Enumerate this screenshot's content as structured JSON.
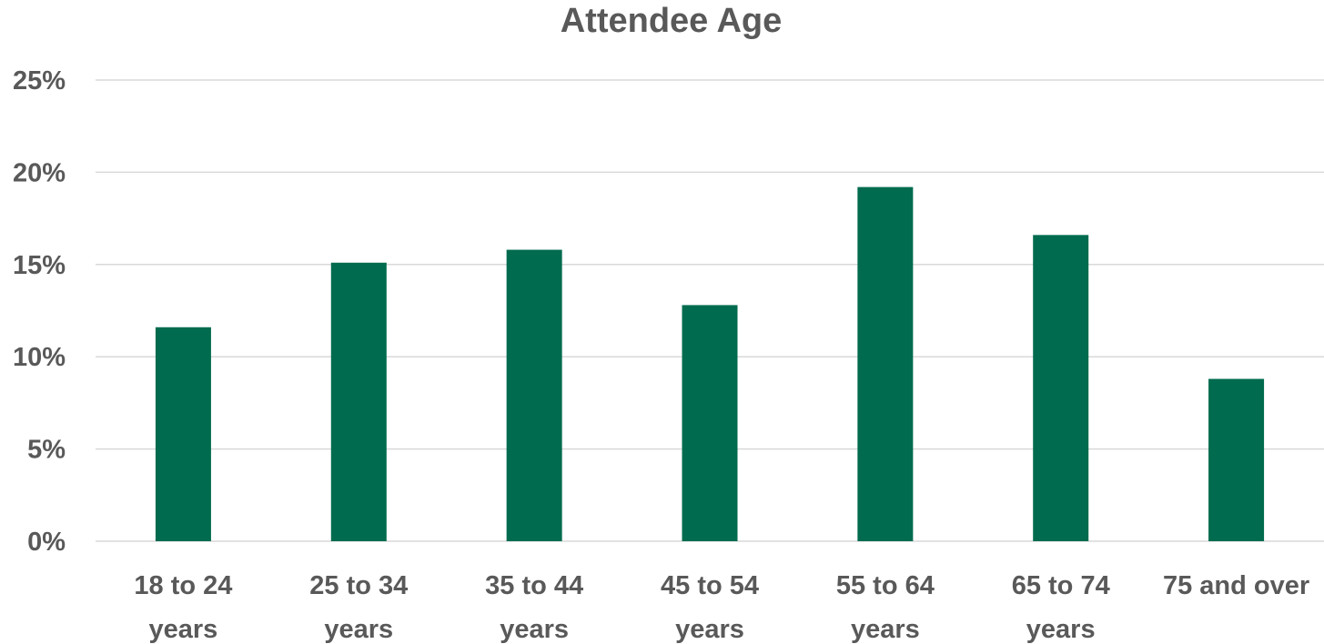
{
  "chart_data": {
    "type": "bar",
    "title": "Attendee Age",
    "xlabel": "",
    "ylabel": "",
    "categories": [
      [
        "18 to 24",
        "years"
      ],
      [
        "25 to 34",
        "years"
      ],
      [
        "35 to 44",
        "years"
      ],
      [
        "45 to 54",
        "years"
      ],
      [
        "55 to 64",
        "years"
      ],
      [
        "65 to 74",
        "years"
      ],
      [
        "75 and over"
      ]
    ],
    "values": [
      11.6,
      15.1,
      15.8,
      12.8,
      19.2,
      16.6,
      8.8
    ],
    "ylim": [
      0,
      25
    ],
    "yticks": [
      "0%",
      "5%",
      "10%",
      "15%",
      "20%",
      "25%"
    ],
    "grid": true,
    "legend": "none",
    "bar_color": "#006B4E",
    "grid_color": "#D9D9D9",
    "text_color": "#595959"
  }
}
